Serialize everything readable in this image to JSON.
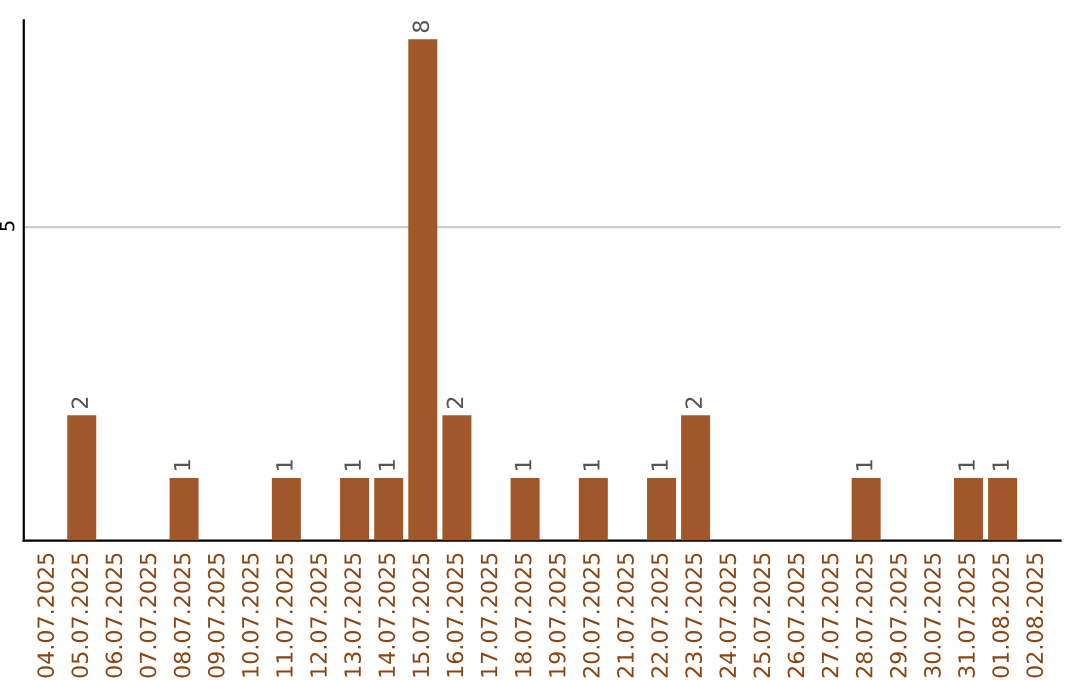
{
  "chart_data": {
    "type": "bar",
    "categories": [
      "04.07.2025",
      "05.07.2025",
      "06.07.2025",
      "07.07.2025",
      "08.07.2025",
      "09.07.2025",
      "10.07.2025",
      "11.07.2025",
      "12.07.2025",
      "13.07.2025",
      "14.07.2025",
      "15.07.2025",
      "16.07.2025",
      "17.07.2025",
      "18.07.2025",
      "19.07.2025",
      "20.07.2025",
      "21.07.2025",
      "22.07.2025",
      "23.07.2025",
      "24.07.2025",
      "25.07.2025",
      "26.07.2025",
      "27.07.2025",
      "28.07.2025",
      "29.07.2025",
      "30.07.2025",
      "31.07.2025",
      "01.08.2025",
      "02.08.2025"
    ],
    "values": [
      0,
      2,
      0,
      0,
      1,
      0,
      0,
      1,
      0,
      1,
      1,
      8,
      2,
      0,
      1,
      0,
      1,
      0,
      1,
      2,
      0,
      0,
      0,
      0,
      1,
      0,
      0,
      1,
      1,
      0
    ],
    "value_labels": [
      null,
      "2",
      null,
      null,
      "1",
      null,
      null,
      "1",
      null,
      "1",
      "1",
      "8",
      "2",
      null,
      "1",
      null,
      "1",
      null,
      "1",
      "2",
      null,
      null,
      null,
      null,
      "1",
      null,
      null,
      "1",
      "1",
      null
    ],
    "color": "#a0582a",
    "ylim": [
      0,
      8.3
    ],
    "yticks": [
      5
    ],
    "grid": "y"
  }
}
